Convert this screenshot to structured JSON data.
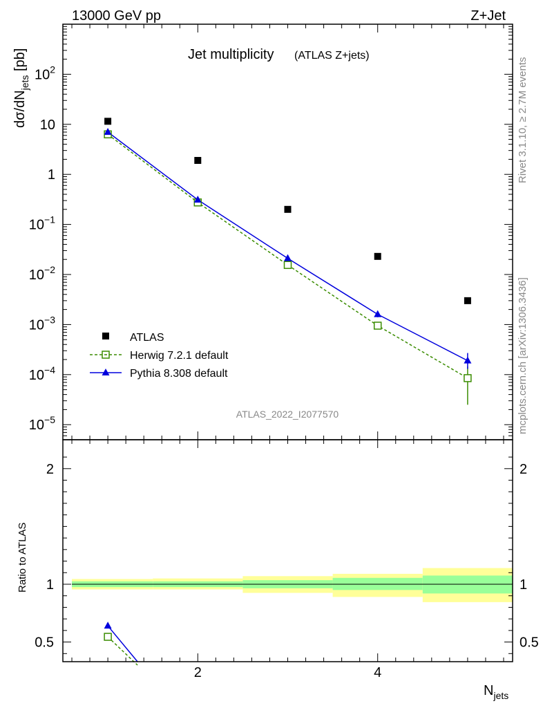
{
  "header": {
    "left": "13000 GeV pp",
    "right": "Z+Jet"
  },
  "title": {
    "main": "Jet multiplicity",
    "sub": "(ATLAS Z+jets)"
  },
  "side_labels": {
    "rivet": "Rivet 3.1.10, ≥ 2.7M events",
    "mcplots": "mcplots.cern.ch [arXiv:1306.3436]"
  },
  "analysis_tag": "ATLAS_2022_I2077570",
  "axes": {
    "ylabel_main_prefix": "dσ/dN",
    "ylabel_main_sub": "jets",
    "ylabel_main_suffix": " [pb]",
    "ylabel_ratio": "Ratio to ATLAS",
    "xlabel_main": "N",
    "xlabel_sub": "jets"
  },
  "legend": {
    "atlas": "ATLAS",
    "herwig": "Herwig 7.2.1 default",
    "pythia": "Pythia 8.308 default"
  },
  "colors": {
    "atlas": "#000000",
    "herwig": "#3a8c00",
    "pythia": "#0000dd",
    "band_inner": "#99ff99",
    "band_outer": "#ffff99"
  },
  "chart_data": [
    {
      "type": "scatter",
      "panel": "main",
      "yscale": "log",
      "xlim": [
        0.5,
        5.5
      ],
      "ylim": [
        5e-06,
        1000
      ],
      "x_ticks": [
        2,
        4
      ],
      "y_tick_labels": [
        {
          "value": 1e-05,
          "base": "10",
          "exp": "−5"
        },
        {
          "value": 0.0001,
          "base": "10",
          "exp": "−4"
        },
        {
          "value": 0.001,
          "base": "10",
          "exp": "−3"
        },
        {
          "value": 0.01,
          "base": "10",
          "exp": "−2"
        },
        {
          "value": 0.1,
          "base": "10",
          "exp": "−1"
        },
        {
          "value": 1,
          "base": "1",
          "exp": ""
        },
        {
          "value": 10,
          "base": "10",
          "exp": ""
        },
        {
          "value": 100,
          "base": "10",
          "exp": "2"
        }
      ],
      "series": [
        {
          "name": "ATLAS",
          "x": [
            1,
            2,
            3,
            4,
            5
          ],
          "y": [
            11.5,
            1.9,
            0.2,
            0.023,
            0.003
          ]
        },
        {
          "name": "Herwig 7.2.1 default",
          "x": [
            1,
            2,
            3,
            4,
            5
          ],
          "y": [
            6.3,
            0.275,
            0.0155,
            0.00095,
            8.5e-05
          ],
          "yerr_low": [
            0,
            0,
            0,
            0.00015,
            6e-05
          ],
          "yerr_high": [
            0,
            0,
            0,
            0.00015,
            6e-05
          ]
        },
        {
          "name": "Pythia 8.308 default",
          "x": [
            1,
            2,
            3,
            4,
            5
          ],
          "y": [
            7.0,
            0.31,
            0.021,
            0.0016,
            0.00019
          ],
          "yerr_low": [
            0,
            0,
            0,
            0.0002,
            6e-05
          ],
          "yerr_high": [
            0,
            0,
            0,
            0.0002,
            8e-05
          ]
        }
      ]
    },
    {
      "type": "line",
      "panel": "ratio",
      "xlim": [
        0.5,
        5.5
      ],
      "ylim": [
        0.33,
        2.25
      ],
      "y_ticks": [
        0.5,
        1,
        2
      ],
      "y_tick_labels": [
        "0.5",
        "1",
        "2"
      ],
      "x_ticks": [
        2,
        4
      ],
      "x_tick_labels": [
        "2",
        "4"
      ],
      "bands": [
        {
          "xlo": 0.6,
          "xhi": 1.5,
          "inner": [
            0.975,
            1.025
          ],
          "outer": [
            0.955,
            1.045
          ]
        },
        {
          "xlo": 1.5,
          "xhi": 2.5,
          "inner": [
            0.975,
            1.025
          ],
          "outer": [
            0.955,
            1.05
          ]
        },
        {
          "xlo": 2.5,
          "xhi": 3.5,
          "inner": [
            0.965,
            1.035
          ],
          "outer": [
            0.925,
            1.07
          ]
        },
        {
          "xlo": 3.5,
          "xhi": 4.5,
          "inner": [
            0.95,
            1.055
          ],
          "outer": [
            0.89,
            1.09
          ]
        },
        {
          "xlo": 4.5,
          "xhi": 5.5,
          "inner": [
            0.92,
            1.075
          ],
          "outer": [
            0.845,
            1.14
          ]
        }
      ],
      "series": [
        {
          "name": "Herwig 7.2.1 default",
          "x": [
            1,
            1.33
          ],
          "y": [
            0.545,
            0.3
          ]
        },
        {
          "name": "Pythia 8.308 default",
          "x": [
            1,
            1.33
          ],
          "y": [
            0.64,
            0.33
          ]
        }
      ]
    }
  ]
}
